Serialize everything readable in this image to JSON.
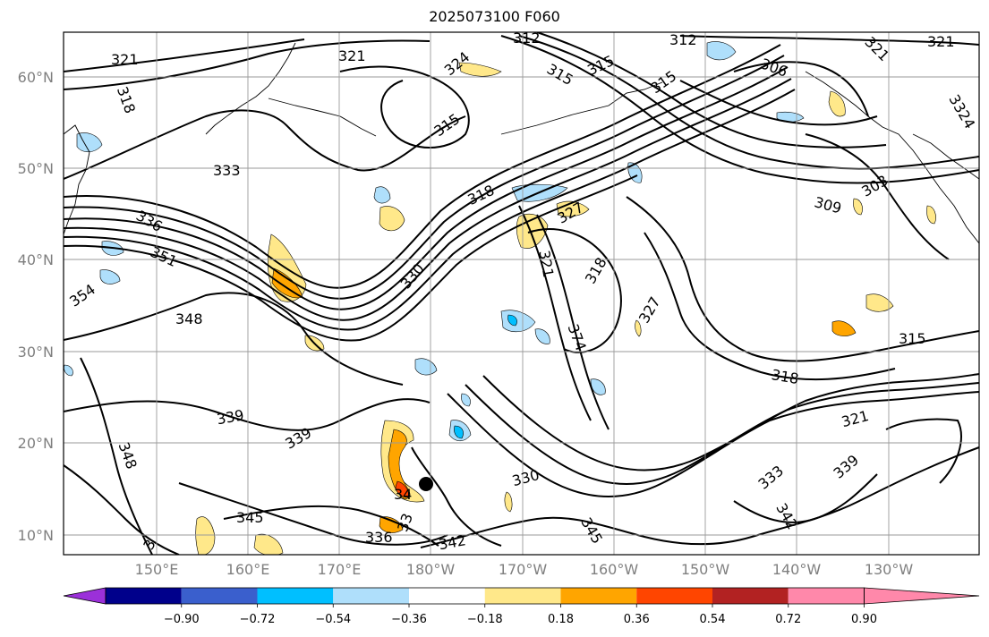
{
  "title": "2025073100 F060",
  "map": {
    "lat_labels": [
      "60°N",
      "50°N",
      "40°N",
      "30°N",
      "20°N",
      "10°N"
    ],
    "lon_labels": [
      "150°E",
      "160°E",
      "170°E",
      "180°W",
      "170°W",
      "160°W",
      "150°W",
      "140°W",
      "130°W"
    ],
    "contour_labels": [
      "321",
      "318",
      "321",
      "324",
      "312",
      "315",
      "315",
      "312",
      "306",
      "321",
      "321",
      "315",
      "315",
      "333",
      "318",
      "327",
      "309",
      "303",
      "3324",
      "336",
      "351",
      "321",
      "318",
      "354",
      "330",
      "327",
      "348",
      "374",
      "315",
      "318",
      "339",
      "339",
      "321",
      "348",
      "330",
      "333",
      "339",
      "342",
      "345",
      "34",
      "33",
      "336",
      "342",
      "345",
      "3"
    ],
    "contour_color": "#000000",
    "coast_color": "#000000",
    "grid_color": "#9a9a9a"
  },
  "colorbar": {
    "ticks": [
      "−0.90",
      "−0.72",
      "−0.54",
      "−0.36",
      "−0.18",
      "0.18",
      "0.36",
      "0.54",
      "0.72",
      "0.90"
    ],
    "colors": [
      "#9b30d9",
      "#00008b",
      "#3a5fcd",
      "#00bfff",
      "#afdffb",
      "#ffffff",
      "#ffe88a",
      "#ffa500",
      "#ff4500",
      "#b22222",
      "#ff88aa"
    ]
  }
}
